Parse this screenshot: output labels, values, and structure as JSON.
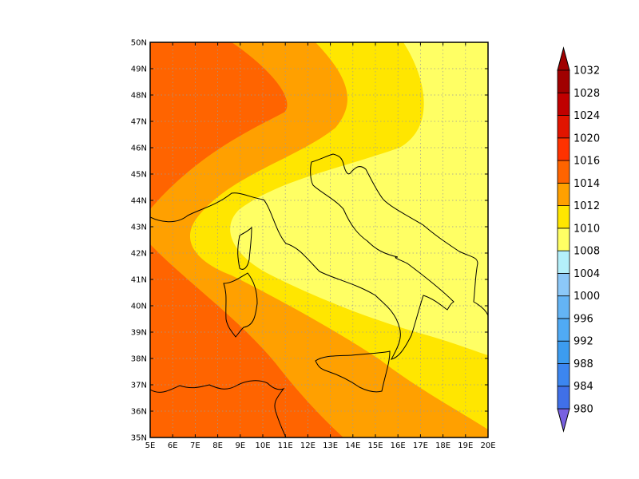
{
  "map": {
    "lat_ticks": [
      "35N",
      "36N",
      "37N",
      "38N",
      "39N",
      "40N",
      "41N",
      "42N",
      "43N",
      "44N",
      "45N",
      "46N",
      "47N",
      "48N",
      "49N",
      "50N"
    ],
    "lon_ticks": [
      "5E",
      "6E",
      "7E",
      "8E",
      "9E",
      "10E",
      "11E",
      "12E",
      "13E",
      "14E",
      "15E",
      "16E",
      "17E",
      "18E",
      "19E",
      "20E"
    ],
    "lon_range": [
      5,
      20
    ],
    "lat_range": [
      35,
      50
    ],
    "grid": "dotted",
    "bands": [
      {
        "level": "1016-1020",
        "color": "#ff6400"
      },
      {
        "level": "1014-1016",
        "color": "#ffa000"
      },
      {
        "level": "1012-1014",
        "color": "#ffe600"
      },
      {
        "level": "1010-1012",
        "color": "#ffff64"
      }
    ]
  },
  "colorbar": {
    "levels": [
      "980",
      "984",
      "988",
      "992",
      "996",
      "1000",
      "1004",
      "1008",
      "1010",
      "1012",
      "1014",
      "1016",
      "1020",
      "1024",
      "1028",
      "1032"
    ],
    "colors": [
      "#7860e0",
      "#4070e8",
      "#3c86f0",
      "#3c9cf0",
      "#50aaf5",
      "#64b4f5",
      "#8cc8f8",
      "#b4f0fa",
      "#ffff64",
      "#ffe600",
      "#ffa000",
      "#ff6400",
      "#ff3200",
      "#e11400",
      "#c00000",
      "#a00000"
    ]
  }
}
